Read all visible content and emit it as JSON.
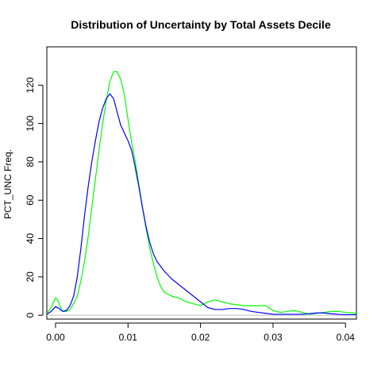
{
  "chart_data": {
    "type": "line",
    "title": "Distribution of Uncertainty by Total Assets Decile",
    "xlabel": "",
    "ylabel": "PCT_UNC Freq.",
    "xlim": [
      -0.0012,
      0.0415
    ],
    "ylim": [
      -2,
      140
    ],
    "x_ticks": [
      0.0,
      0.01,
      0.02,
      0.03,
      0.04
    ],
    "x_tick_labels": [
      "0.00",
      "0.01",
      "0.02",
      "0.03",
      "0.04"
    ],
    "y_ticks": [
      0,
      20,
      40,
      60,
      80,
      100,
      120
    ],
    "y_tick_labels": [
      "0",
      "20",
      "40",
      "60",
      "80",
      "100",
      "120"
    ],
    "baseline": 0,
    "grid": false,
    "colors": {
      "baseline": "#bebebe"
    },
    "series": [
      {
        "color": "#0000ff",
        "points": [
          [
            -0.0012,
            0.5
          ],
          [
            -0.0006,
            2
          ],
          [
            0.0,
            4.5
          ],
          [
            0.0005,
            3.5
          ],
          [
            0.001,
            2.0
          ],
          [
            0.0015,
            2.5
          ],
          [
            0.002,
            5
          ],
          [
            0.0025,
            10
          ],
          [
            0.003,
            20
          ],
          [
            0.0035,
            35
          ],
          [
            0.004,
            52
          ],
          [
            0.0045,
            67
          ],
          [
            0.005,
            80
          ],
          [
            0.0055,
            91
          ],
          [
            0.006,
            101
          ],
          [
            0.0065,
            108
          ],
          [
            0.007,
            113
          ],
          [
            0.0075,
            115.5
          ],
          [
            0.008,
            113
          ],
          [
            0.0085,
            106
          ],
          [
            0.009,
            99
          ],
          [
            0.0095,
            95
          ],
          [
            0.01,
            91
          ],
          [
            0.0105,
            86
          ],
          [
            0.011,
            77
          ],
          [
            0.0115,
            67
          ],
          [
            0.012,
            56
          ],
          [
            0.0125,
            46
          ],
          [
            0.013,
            38
          ],
          [
            0.0135,
            32
          ],
          [
            0.014,
            28
          ],
          [
            0.015,
            23
          ],
          [
            0.016,
            19
          ],
          [
            0.017,
            16
          ],
          [
            0.018,
            13
          ],
          [
            0.019,
            10
          ],
          [
            0.02,
            7
          ],
          [
            0.021,
            4
          ],
          [
            0.022,
            3
          ],
          [
            0.023,
            3
          ],
          [
            0.024,
            3.5
          ],
          [
            0.025,
            3.5
          ],
          [
            0.026,
            3
          ],
          [
            0.027,
            2
          ],
          [
            0.028,
            1.5
          ],
          [
            0.029,
            1
          ],
          [
            0.03,
            0.5
          ],
          [
            0.031,
            0.5
          ],
          [
            0.032,
            0.5
          ],
          [
            0.033,
            0.5
          ],
          [
            0.034,
            0.5
          ],
          [
            0.035,
            0.8
          ],
          [
            0.036,
            1.2
          ],
          [
            0.037,
            1.2
          ],
          [
            0.038,
            0.8
          ],
          [
            0.039,
            0.5
          ],
          [
            0.04,
            0.3
          ],
          [
            0.041,
            0.3
          ],
          [
            0.0415,
            0.3
          ]
        ]
      },
      {
        "color": "#00ff00",
        "points": [
          [
            -0.0012,
            1
          ],
          [
            -0.0006,
            4
          ],
          [
            0.0,
            9
          ],
          [
            0.0003,
            8
          ],
          [
            0.0007,
            4
          ],
          [
            0.001,
            2
          ],
          [
            0.0015,
            2
          ],
          [
            0.002,
            3
          ],
          [
            0.0025,
            6
          ],
          [
            0.003,
            10
          ],
          [
            0.0035,
            18
          ],
          [
            0.004,
            28
          ],
          [
            0.0045,
            41
          ],
          [
            0.005,
            56
          ],
          [
            0.0055,
            71
          ],
          [
            0.006,
            86
          ],
          [
            0.0065,
            100
          ],
          [
            0.007,
            112
          ],
          [
            0.0075,
            122
          ],
          [
            0.008,
            127
          ],
          [
            0.0085,
            127
          ],
          [
            0.009,
            123
          ],
          [
            0.0095,
            115
          ],
          [
            0.01,
            102
          ],
          [
            0.0105,
            90
          ],
          [
            0.011,
            80
          ],
          [
            0.0115,
            68
          ],
          [
            0.012,
            56
          ],
          [
            0.0125,
            45
          ],
          [
            0.013,
            35
          ],
          [
            0.0135,
            27
          ],
          [
            0.014,
            20
          ],
          [
            0.0145,
            15
          ],
          [
            0.015,
            12
          ],
          [
            0.016,
            10
          ],
          [
            0.017,
            9
          ],
          [
            0.018,
            7
          ],
          [
            0.019,
            6
          ],
          [
            0.02,
            5
          ],
          [
            0.021,
            7
          ],
          [
            0.022,
            8
          ],
          [
            0.023,
            7
          ],
          [
            0.024,
            6
          ],
          [
            0.025,
            5.5
          ],
          [
            0.026,
            5
          ],
          [
            0.027,
            5
          ],
          [
            0.028,
            5
          ],
          [
            0.029,
            5
          ],
          [
            0.03,
            2.5
          ],
          [
            0.031,
            1.5
          ],
          [
            0.032,
            2
          ],
          [
            0.033,
            2.5
          ],
          [
            0.034,
            1.5
          ],
          [
            0.035,
            0.5
          ],
          [
            0.036,
            1
          ],
          [
            0.037,
            1.5
          ],
          [
            0.038,
            2
          ],
          [
            0.039,
            2
          ],
          [
            0.04,
            1.5
          ],
          [
            0.041,
            1.2
          ],
          [
            0.0415,
            1
          ]
        ]
      }
    ]
  }
}
